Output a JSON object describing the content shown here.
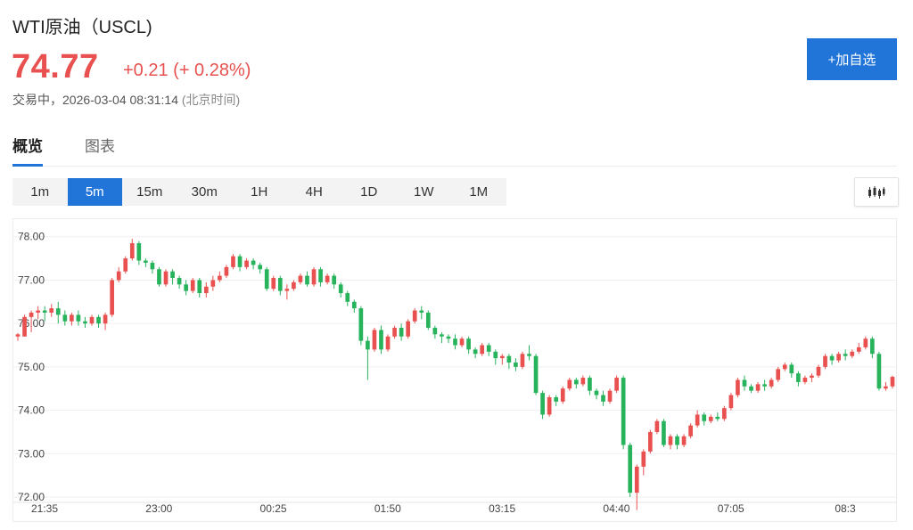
{
  "header": {
    "title": "WTI原油（USCL)",
    "price": "74.77",
    "change": "+0.21 (+ 0.28%)",
    "status": "交易中，",
    "datetime": "2026-03-04 08:31:14",
    "timezone": "(北京时间)",
    "watch_button": "+加自选"
  },
  "tabs": [
    {
      "label": "概览",
      "active": true
    },
    {
      "label": "图表",
      "active": false
    }
  ],
  "intervals": [
    {
      "label": "1m",
      "active": false
    },
    {
      "label": "5m",
      "active": true
    },
    {
      "label": "15m",
      "active": false
    },
    {
      "label": "30m",
      "active": false
    },
    {
      "label": "1H",
      "active": false
    },
    {
      "label": "4H",
      "active": false
    },
    {
      "label": "1D",
      "active": false
    },
    {
      "label": "1W",
      "active": false
    },
    {
      "label": "1M",
      "active": false
    }
  ],
  "chart_type_icon": "candlestick-icon",
  "colors": {
    "up": "#e8514f",
    "down": "#27b35c",
    "accent": "#2175d9"
  },
  "chart_data": {
    "type": "candlestick",
    "interval": "5m",
    "ylim": [
      72.0,
      78.2
    ],
    "yticks": [
      "78.00",
      "77.00",
      "76.00",
      "75.00",
      "74.00",
      "73.00",
      "72.00"
    ],
    "ytick_values": [
      78,
      77,
      76,
      75,
      74,
      73,
      72
    ],
    "xticks": [
      "21:35",
      "23:00",
      "00:25",
      "01:50",
      "03:15",
      "04:40",
      "07:05",
      "08:3"
    ],
    "xtick_index": [
      0,
      17,
      34,
      51,
      68,
      85,
      102,
      119
    ],
    "grid": true,
    "candles": [
      [
        75.7,
        75.75,
        75.6,
        75.78
      ],
      [
        75.7,
        76.15,
        75.7,
        76.2
      ],
      [
        76.15,
        76.25,
        75.8,
        76.3
      ],
      [
        76.25,
        76.3,
        76.1,
        76.4
      ],
      [
        76.3,
        76.25,
        76.05,
        76.4
      ],
      [
        76.25,
        76.35,
        76.15,
        76.45
      ],
      [
        76.35,
        76.2,
        76.0,
        76.5
      ],
      [
        76.2,
        76.05,
        75.95,
        76.3
      ],
      [
        76.05,
        76.2,
        75.95,
        76.25
      ],
      [
        76.2,
        76.05,
        75.95,
        76.3
      ],
      [
        76.05,
        76.0,
        75.9,
        76.15
      ],
      [
        76.0,
        76.15,
        75.95,
        76.2
      ],
      [
        76.15,
        76.0,
        75.9,
        76.2
      ],
      [
        76.0,
        76.2,
        75.85,
        76.25
      ],
      [
        76.2,
        77.0,
        76.15,
        77.05
      ],
      [
        77.0,
        77.2,
        76.95,
        77.3
      ],
      [
        77.2,
        77.5,
        77.15,
        77.55
      ],
      [
        77.5,
        77.85,
        77.45,
        77.95
      ],
      [
        77.85,
        77.45,
        77.35,
        77.9
      ],
      [
        77.45,
        77.4,
        77.3,
        77.5
      ],
      [
        77.4,
        77.25,
        77.15,
        77.45
      ],
      [
        77.25,
        76.9,
        76.85,
        77.3
      ],
      [
        76.9,
        77.2,
        76.85,
        77.25
      ],
      [
        77.2,
        77.05,
        76.9,
        77.25
      ],
      [
        77.05,
        76.9,
        76.8,
        77.1
      ],
      [
        76.9,
        76.75,
        76.65,
        77.0
      ],
      [
        76.75,
        77.0,
        76.7,
        77.05
      ],
      [
        77.0,
        76.7,
        76.6,
        77.05
      ],
      [
        76.7,
        76.85,
        76.6,
        76.95
      ],
      [
        76.85,
        77.0,
        76.75,
        77.1
      ],
      [
        77.0,
        77.1,
        76.95,
        77.2
      ],
      [
        77.1,
        77.3,
        77.05,
        77.35
      ],
      [
        77.3,
        77.55,
        77.25,
        77.6
      ],
      [
        77.55,
        77.3,
        77.2,
        77.6
      ],
      [
        77.3,
        77.45,
        77.25,
        77.5
      ],
      [
        77.45,
        77.35,
        77.25,
        77.5
      ],
      [
        77.35,
        77.25,
        77.15,
        77.4
      ],
      [
        77.25,
        76.8,
        76.75,
        77.3
      ],
      [
        76.8,
        77.05,
        76.75,
        77.1
      ],
      [
        77.05,
        76.75,
        76.65,
        77.1
      ],
      [
        76.75,
        76.8,
        76.55,
        76.9
      ],
      [
        76.8,
        76.95,
        76.75,
        77.0
      ],
      [
        76.95,
        77.1,
        76.9,
        77.15
      ],
      [
        77.1,
        76.9,
        76.85,
        77.2
      ],
      [
        76.9,
        77.25,
        76.85,
        77.3
      ],
      [
        77.25,
        76.95,
        76.85,
        77.3
      ],
      [
        76.95,
        77.1,
        76.9,
        77.15
      ],
      [
        77.1,
        76.9,
        76.8,
        77.15
      ],
      [
        76.9,
        76.7,
        76.6,
        76.95
      ],
      [
        76.7,
        76.5,
        76.4,
        76.75
      ],
      [
        76.5,
        76.35,
        76.25,
        76.55
      ],
      [
        76.35,
        75.6,
        75.5,
        76.4
      ],
      [
        75.6,
        75.4,
        74.7,
        75.7
      ],
      [
        75.4,
        75.85,
        75.35,
        75.9
      ],
      [
        75.85,
        75.4,
        75.3,
        75.95
      ],
      [
        75.4,
        75.7,
        75.35,
        75.75
      ],
      [
        75.7,
        75.9,
        75.65,
        75.95
      ],
      [
        75.9,
        75.7,
        75.6,
        76.0
      ],
      [
        75.7,
        76.05,
        75.65,
        76.1
      ],
      [
        76.05,
        76.3,
        76.0,
        76.35
      ],
      [
        76.3,
        76.25,
        76.1,
        76.4
      ],
      [
        76.25,
        75.9,
        75.85,
        76.3
      ],
      [
        75.9,
        75.75,
        75.65,
        75.95
      ],
      [
        75.75,
        75.7,
        75.55,
        75.8
      ],
      [
        75.7,
        75.65,
        75.55,
        75.75
      ],
      [
        75.65,
        75.5,
        75.4,
        75.75
      ],
      [
        75.5,
        75.65,
        75.45,
        75.7
      ],
      [
        75.65,
        75.4,
        75.3,
        75.7
      ],
      [
        75.4,
        75.3,
        75.2,
        75.45
      ],
      [
        75.3,
        75.5,
        75.25,
        75.55
      ],
      [
        75.5,
        75.35,
        75.25,
        75.55
      ],
      [
        75.35,
        75.2,
        75.05,
        75.4
      ],
      [
        75.2,
        75.25,
        75.05,
        75.3
      ],
      [
        75.25,
        75.1,
        74.95,
        75.3
      ],
      [
        75.1,
        75.0,
        74.9,
        75.2
      ],
      [
        75.0,
        75.3,
        74.95,
        75.35
      ],
      [
        75.3,
        75.25,
        75.15,
        75.5
      ],
      [
        75.25,
        74.4,
        74.35,
        75.3
      ],
      [
        74.4,
        73.9,
        73.8,
        74.45
      ],
      [
        73.9,
        74.3,
        73.85,
        74.35
      ],
      [
        74.3,
        74.2,
        74.1,
        74.35
      ],
      [
        74.2,
        74.5,
        74.15,
        74.55
      ],
      [
        74.5,
        74.7,
        74.45,
        74.75
      ],
      [
        74.7,
        74.6,
        74.5,
        74.75
      ],
      [
        74.6,
        74.75,
        74.55,
        74.8
      ],
      [
        74.75,
        74.45,
        74.35,
        74.8
      ],
      [
        74.45,
        74.35,
        74.25,
        74.5
      ],
      [
        74.35,
        74.2,
        74.1,
        74.45
      ],
      [
        74.2,
        74.45,
        74.15,
        74.5
      ],
      [
        74.45,
        74.75,
        74.4,
        74.8
      ],
      [
        74.75,
        73.2,
        73.1,
        74.8
      ],
      [
        73.2,
        72.1,
        72.0,
        73.25
      ],
      [
        72.1,
        72.7,
        71.7,
        72.75
      ],
      [
        72.7,
        73.05,
        72.5,
        73.1
      ],
      [
        73.05,
        73.5,
        73.0,
        73.55
      ],
      [
        73.5,
        73.75,
        73.45,
        73.8
      ],
      [
        73.75,
        73.2,
        73.15,
        73.8
      ],
      [
        73.2,
        73.4,
        73.1,
        73.45
      ],
      [
        73.4,
        73.2,
        73.1,
        73.45
      ],
      [
        73.2,
        73.4,
        73.15,
        73.45
      ],
      [
        73.4,
        73.65,
        73.35,
        73.7
      ],
      [
        73.65,
        73.9,
        73.6,
        74.0
      ],
      [
        73.9,
        73.75,
        73.65,
        73.95
      ],
      [
        73.75,
        73.85,
        73.7,
        73.9
      ],
      [
        73.85,
        73.8,
        73.75,
        73.95
      ],
      [
        73.8,
        74.05,
        73.75,
        74.1
      ],
      [
        74.05,
        74.35,
        74.0,
        74.4
      ],
      [
        74.35,
        74.7,
        74.3,
        74.75
      ],
      [
        74.7,
        74.55,
        74.45,
        74.8
      ],
      [
        74.55,
        74.45,
        74.4,
        74.6
      ],
      [
        74.45,
        74.6,
        74.4,
        74.65
      ],
      [
        74.6,
        74.55,
        74.45,
        74.7
      ],
      [
        74.55,
        74.7,
        74.5,
        74.75
      ],
      [
        74.7,
        74.95,
        74.65,
        75.0
      ],
      [
        74.95,
        75.05,
        74.9,
        75.1
      ],
      [
        75.05,
        74.85,
        74.75,
        75.1
      ],
      [
        74.85,
        74.65,
        74.55,
        74.9
      ],
      [
        74.65,
        74.75,
        74.6,
        74.8
      ],
      [
        74.75,
        74.8,
        74.65,
        74.85
      ],
      [
        74.8,
        75.0,
        74.75,
        75.05
      ],
      [
        75.0,
        75.25,
        74.95,
        75.3
      ],
      [
        75.25,
        75.15,
        75.05,
        75.3
      ],
      [
        75.15,
        75.3,
        75.1,
        75.35
      ],
      [
        75.3,
        75.25,
        75.15,
        75.4
      ],
      [
        75.25,
        75.35,
        75.2,
        75.4
      ],
      [
        75.35,
        75.45,
        75.3,
        75.55
      ],
      [
        75.45,
        75.65,
        75.4,
        75.7
      ],
      [
        75.65,
        75.3,
        75.2,
        75.7
      ],
      [
        75.3,
        74.5,
        74.45,
        75.35
      ],
      [
        74.5,
        74.55,
        74.45,
        74.65
      ],
      [
        74.55,
        74.77,
        74.5,
        74.8
      ]
    ]
  }
}
